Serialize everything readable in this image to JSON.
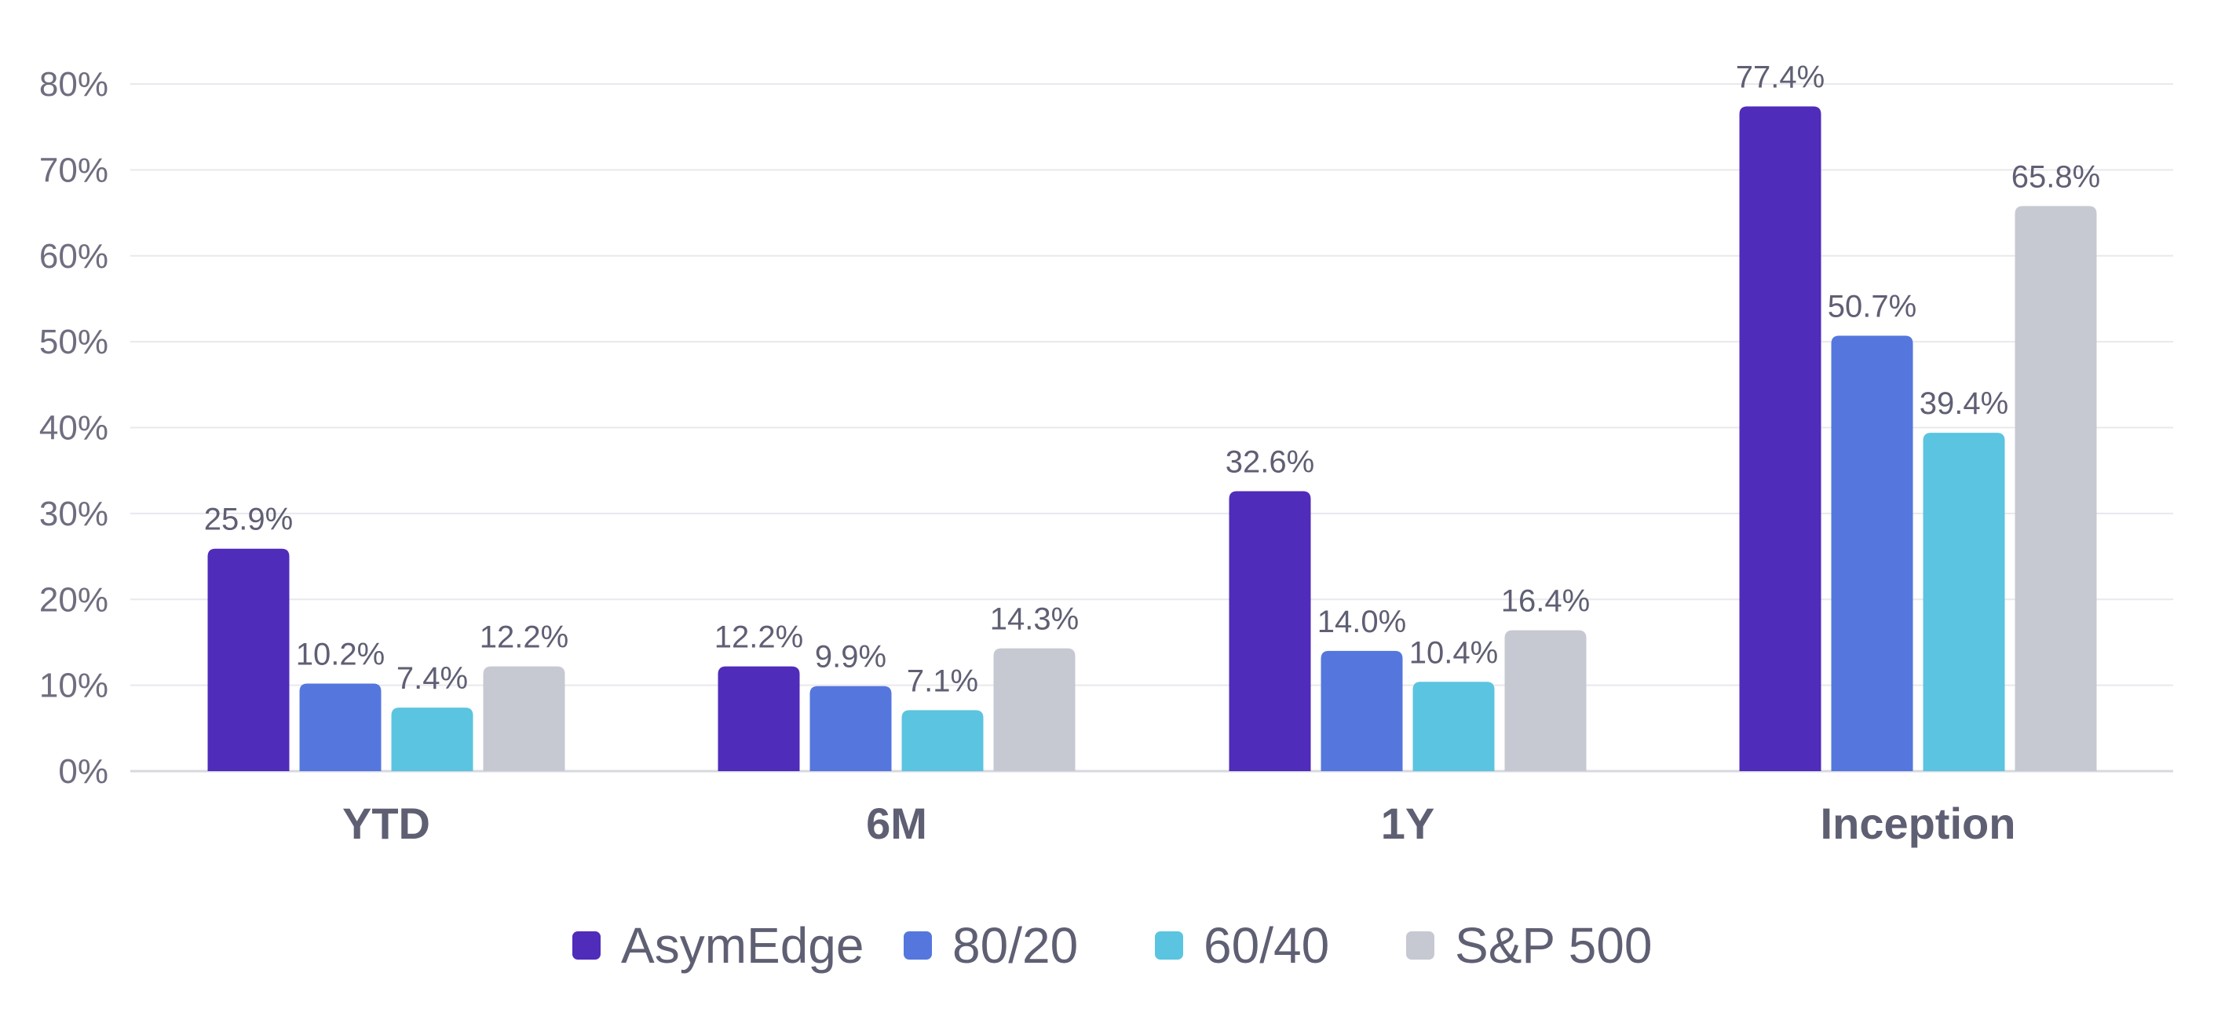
{
  "chart_data": {
    "type": "bar",
    "categories": [
      "YTD",
      "6M",
      "1Y",
      "Inception"
    ],
    "series": [
      {
        "name": "AsymEdge",
        "color": "#4f2cba",
        "values": [
          25.9,
          12.2,
          32.6,
          77.4
        ]
      },
      {
        "name": "80/20",
        "color": "#5577dd",
        "values": [
          10.2,
          9.9,
          14.0,
          50.7
        ]
      },
      {
        "name": "60/40",
        "color": "#5bc4e0",
        "values": [
          7.4,
          7.1,
          10.4,
          39.4
        ]
      },
      {
        "name": "S&P 500",
        "color": "#c6c9d1",
        "values": [
          12.2,
          14.3,
          16.4,
          65.8
        ]
      }
    ],
    "value_labels": [
      [
        "25.9%",
        "12.2%",
        "32.6%",
        "77.4%"
      ],
      [
        "10.2%",
        "9.9%",
        "14.0%",
        "50.7%"
      ],
      [
        "7.4%",
        "7.1%",
        "10.4%",
        "39.4%"
      ],
      [
        "12.2%",
        "14.3%",
        "16.4%",
        "65.8%"
      ]
    ],
    "y_ticks": [
      0,
      10,
      20,
      30,
      40,
      50,
      60,
      70,
      80
    ],
    "y_tick_labels": [
      "0%",
      "10%",
      "20%",
      "30%",
      "40%",
      "50%",
      "60%",
      "70%",
      "80%"
    ],
    "ylim": [
      0,
      80
    ],
    "grid": true,
    "legend_position": "bottom-center",
    "title": "",
    "xlabel": "",
    "ylabel": ""
  }
}
